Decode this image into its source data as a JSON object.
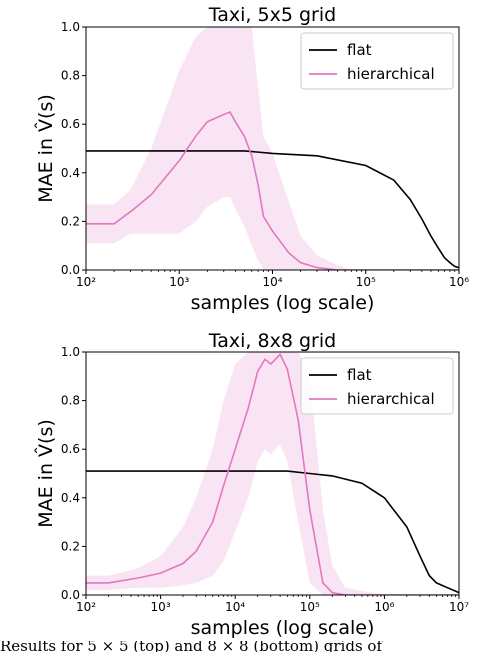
{
  "chart_data": [
    {
      "type": "line",
      "title": "Taxi, 5x5 grid",
      "xlabel": "samples (log scale)",
      "ylabel": "MAE in V̂(s)",
      "xscale": "log",
      "xlim": [
        100,
        1000000
      ],
      "ylim": [
        0.0,
        1.0
      ],
      "xticks": [
        "10²",
        "10³",
        "10⁴",
        "10⁵",
        "10⁶"
      ],
      "yticks": [
        "0.0",
        "0.2",
        "0.4",
        "0.6",
        "0.8",
        "1.0"
      ],
      "legend_loc": "upper right",
      "series": [
        {
          "name": "flat",
          "color": "#000000",
          "x": [
            100,
            1000,
            5000,
            10000,
            30000,
            100000,
            200000,
            300000,
            400000,
            500000,
            600000,
            700000,
            800000,
            900000,
            1000000
          ],
          "y": [
            0.49,
            0.49,
            0.49,
            0.48,
            0.47,
            0.43,
            0.37,
            0.29,
            0.21,
            0.14,
            0.09,
            0.05,
            0.03,
            0.015,
            0.01
          ]
        },
        {
          "name": "hierarchical",
          "color": "#e377c2",
          "x": [
            100,
            200,
            300,
            500,
            1000,
            1500,
            2000,
            3000,
            3500,
            4000,
            5000,
            6000,
            7000,
            8000,
            10000,
            15000,
            20000,
            30000,
            50000,
            70000,
            100000,
            1000000
          ],
          "y": [
            0.19,
            0.19,
            0.24,
            0.31,
            0.45,
            0.55,
            0.61,
            0.64,
            0.65,
            0.61,
            0.55,
            0.47,
            0.35,
            0.22,
            0.16,
            0.07,
            0.03,
            0.01,
            0.0,
            0.0,
            0.0,
            0.0
          ],
          "band_upper": [
            0.27,
            0.27,
            0.33,
            0.5,
            0.82,
            0.96,
            1.0,
            1.0,
            1.0,
            1.0,
            1.0,
            1.0,
            0.75,
            0.55,
            0.48,
            0.28,
            0.14,
            0.06,
            0.02,
            0.0,
            0.0,
            0.0
          ],
          "band_lower": [
            0.11,
            0.11,
            0.15,
            0.15,
            0.15,
            0.2,
            0.26,
            0.3,
            0.3,
            0.25,
            0.18,
            0.1,
            0.04,
            0.0,
            0.0,
            0.0,
            0.0,
            0.0,
            0.0,
            0.0,
            0.0,
            0.0
          ]
        }
      ]
    },
    {
      "type": "line",
      "title": "Taxi, 8x8 grid",
      "xlabel": "samples (log scale)",
      "ylabel": "MAE in V̂(s)",
      "xscale": "log",
      "xlim": [
        100,
        10000000
      ],
      "ylim": [
        0.0,
        1.0
      ],
      "xticks": [
        "10²",
        "10³",
        "10⁴",
        "10⁵",
        "10⁶",
        "10⁷"
      ],
      "yticks": [
        "0.0",
        "0.2",
        "0.4",
        "0.6",
        "0.8",
        "1.0"
      ],
      "legend_loc": "upper right",
      "series": [
        {
          "name": "flat",
          "color": "#000000",
          "x": [
            100,
            1000,
            10000,
            50000,
            100000,
            200000,
            500000,
            1000000,
            2000000,
            3000000,
            4000000,
            5000000,
            7000000,
            10000000
          ],
          "y": [
            0.51,
            0.51,
            0.51,
            0.51,
            0.5,
            0.49,
            0.46,
            0.4,
            0.28,
            0.16,
            0.08,
            0.05,
            0.03,
            0.01
          ]
        },
        {
          "name": "hierarchical",
          "color": "#e377c2",
          "x": [
            100,
            200,
            500,
            1000,
            2000,
            3000,
            5000,
            7000,
            10000,
            15000,
            20000,
            25000,
            30000,
            40000,
            50000,
            70000,
            100000,
            150000,
            200000,
            300000,
            1000000,
            10000000
          ],
          "y": [
            0.05,
            0.05,
            0.07,
            0.09,
            0.13,
            0.18,
            0.3,
            0.45,
            0.6,
            0.77,
            0.92,
            0.97,
            0.95,
            0.99,
            0.93,
            0.72,
            0.35,
            0.05,
            0.01,
            0.0,
            0.0,
            0.0
          ],
          "band_upper": [
            0.08,
            0.08,
            0.11,
            0.16,
            0.28,
            0.4,
            0.6,
            0.8,
            0.95,
            1.0,
            1.0,
            1.0,
            1.0,
            1.0,
            1.0,
            1.0,
            0.9,
            0.35,
            0.12,
            0.03,
            0.0,
            0.0
          ],
          "band_lower": [
            0.02,
            0.02,
            0.03,
            0.03,
            0.04,
            0.05,
            0.08,
            0.14,
            0.26,
            0.4,
            0.55,
            0.6,
            0.58,
            0.62,
            0.55,
            0.3,
            0.05,
            0.0,
            0.0,
            0.0,
            0.0,
            0.0
          ]
        }
      ]
    }
  ],
  "caption": "Results for 5 × 5 (top) and 8 × 8 (bottom) grids of"
}
